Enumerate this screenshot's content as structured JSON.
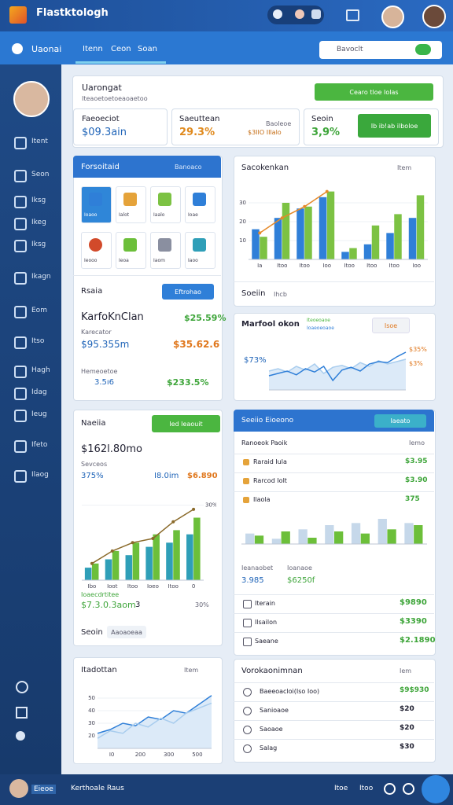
{
  "topbar": {
    "title": "Flastktologh"
  },
  "navbar": {
    "brand": "Uaonai",
    "tabs": [
      "Itenn",
      "Ceon",
      "Soan"
    ],
    "search": "Bavoclt"
  },
  "sidebar": {
    "items": [
      "Itent",
      "Seon",
      "Iksg",
      "Ikeg",
      "Iksg",
      "Ikagn",
      "Eom",
      "Itso",
      "Hagh",
      "Idag",
      "Ieug",
      "Ifeto",
      "Ilaog"
    ]
  },
  "footer": {
    "user": "Eieoe",
    "text": "Kerthoale Raus",
    "links": [
      "Itoe",
      "Itoo"
    ]
  },
  "header_card": {
    "title": "Uarongat",
    "subtitle": "Iteaoetoetoeaoaetoo",
    "button": "Cearo tloe Iolas",
    "stats": [
      {
        "label": "Faeoeciot",
        "value": "$09.3ain"
      },
      {
        "label": "Saeuttean",
        "note": "Baoleoe",
        "value": "29.3%",
        "extra": "$3IIO IIlalo"
      },
      {
        "label": "Seoin",
        "value": "3,9%",
        "button": "Ib ib!ab ilboloe"
      }
    ]
  },
  "tools_card": {
    "title": "Forsoitaid",
    "action": "Banoaco",
    "tiles": [
      "Ioaoo",
      "Ialot",
      "Iaalo",
      "Ioae",
      "Ieooo",
      "Ieoa",
      "Iaom",
      "Iaoo"
    ],
    "section": "Rsaia",
    "button": "Eftrohao",
    "name": "KarfoKnClan",
    "caption": "Karecator",
    "value1": "$95.355m",
    "value2": "$35.62.6",
    "value3": "$25.59%",
    "note": "Hemeoetoe",
    "value4": "3.5ı6",
    "value5": "$233.5%"
  },
  "sales_card": {
    "title": "Sacokenkan",
    "filter": "Item",
    "footer": "Soeiin",
    "footer_note": "Ihcb",
    "chart": {
      "ylim": [
        0,
        40
      ],
      "yticks": [
        10,
        20,
        30
      ],
      "categories": [
        "Ia",
        "Itoo",
        "Itoo",
        "Ioo",
        "Itoo",
        "Itoo",
        "Itoo",
        "Ioo"
      ],
      "bars": [
        {
          "color": "#2f7fd8",
          "values": [
            16,
            22,
            27,
            33,
            4,
            8,
            14,
            22
          ]
        },
        {
          "color": "#7cc243",
          "values": [
            12,
            30,
            28,
            36,
            6,
            18,
            24,
            34
          ]
        }
      ],
      "lines": [
        {
          "color": "#e58a2b",
          "values": [
            14,
            22,
            28,
            36,
            null,
            null,
            null,
            null
          ]
        }
      ]
    }
  },
  "market_card": {
    "title": "Marfool okon",
    "legend": [
      "Iteoeoaoe",
      "Ioaeoeoaoe"
    ],
    "button": "Isoe",
    "label1": "$73%",
    "label2": "$35%",
    "label3": "$3%",
    "chart": {
      "ylim": [
        0,
        100
      ],
      "lines": [
        {
          "color": "#a9cdee",
          "values": [
            40,
            45,
            38,
            50,
            42,
            55,
            35,
            48,
            52,
            45,
            58,
            50,
            62,
            55,
            60,
            65
          ]
        },
        {
          "color": "#2f7fd8",
          "values": [
            30,
            35,
            40,
            32,
            45,
            38,
            50,
            20,
            42,
            48,
            40,
            55,
            60,
            58,
            70,
            80
          ]
        }
      ]
    }
  },
  "growth_card": {
    "title": "Naeiia",
    "button": "Ied Ieaouit",
    "value": "$162l.80mo",
    "caption": "Sevceos",
    "value2": "375%",
    "value3": "I8.0im",
    "value4": "$6.890",
    "note": "Ioaecdrtitee",
    "value5": "$7.3.0.3aom",
    "value6": "3",
    "value7": "30%",
    "footer": "Seoin",
    "footer_button": "Aaoaoeaa",
    "chart": {
      "ylim": [
        0,
        40
      ],
      "yticks": [
        {
          "value": 36,
          "label": "30%"
        }
      ],
      "categories": [
        "Ibo",
        "Ioot",
        "Itoo",
        "Ioeo",
        "Itoo",
        "0"
      ],
      "bars": [
        {
          "color": "#2f9fb8",
          "values": [
            6,
            10,
            12,
            16,
            18,
            22
          ]
        },
        {
          "color": "#6cbf3a",
          "values": [
            8,
            14,
            18,
            22,
            24,
            30
          ]
        }
      ],
      "lines": [
        {
          "color": "#8a6a2a",
          "values": [
            8,
            14,
            18,
            20,
            28,
            34
          ]
        }
      ]
    }
  },
  "segments_card": {
    "title": "Seeiio Eioeono",
    "button": "Iaeato",
    "head": [
      "Ranoeok Paoik",
      "Iemo"
    ],
    "rows": [
      [
        "Raraid Iula",
        "$3.95"
      ],
      [
        "Rarcod Iolt",
        "$3.90"
      ],
      [
        "Ilaola",
        "375"
      ]
    ],
    "chart": {
      "ylim": [
        0,
        30
      ],
      "bars": [
        {
          "color": "#c6d8ea",
          "values": [
            10,
            5,
            14,
            18,
            20,
            24,
            20
          ]
        },
        {
          "color": "#6cbf3a",
          "values": [
            8,
            12,
            6,
            12,
            10,
            14,
            18
          ]
        }
      ]
    },
    "note1": "Ieanaobet",
    "note2": "Ioanaoe",
    "value1": "3.985",
    "value2": "$6250f",
    "totals": [
      [
        "Iterain",
        "$9890"
      ],
      [
        "Ilsailon",
        "$3390"
      ],
      [
        "Saeane",
        "$2.1890"
      ]
    ]
  },
  "history_card": {
    "title": "Itadottan",
    "filter": "Item",
    "chart": {
      "ylim": [
        10,
        60
      ],
      "yticks": [
        20,
        30,
        40,
        50
      ],
      "categories": [
        "I0",
        "200",
        "300",
        "500"
      ],
      "lines": [
        {
          "color": "#2f7fd8",
          "values": [
            22,
            25,
            30,
            28,
            35,
            33,
            40,
            38,
            45,
            52
          ]
        },
        {
          "color": "#a9cdee",
          "values": [
            18,
            24,
            22,
            30,
            27,
            34,
            30,
            38,
            42,
            46
          ]
        }
      ]
    }
  },
  "accounts_card": {
    "title": "Vorokaonimnan",
    "filter": "Iem",
    "rows": [
      [
        "Baeeoacloi(Iso Ioo)",
        "$9$930"
      ],
      [
        "Sanioaoe",
        "$20"
      ],
      [
        "Saoaoe",
        "$20"
      ],
      [
        "Salag",
        "$30"
      ]
    ]
  }
}
